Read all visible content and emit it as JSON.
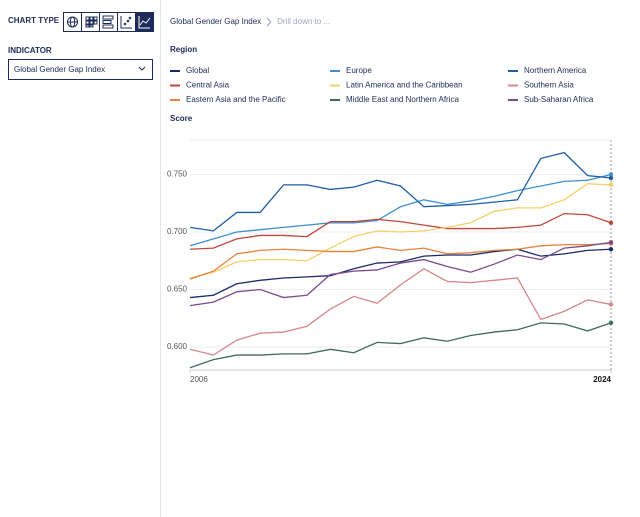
{
  "sidebar": {
    "chart_type_label": "CHART TYPE",
    "indicator_label": "INDICATOR",
    "indicator_value": "Global Gender Gap Index"
  },
  "header": {
    "title": "Global Gender Gap Index",
    "breadcrumb": "Drill down to ..."
  },
  "chart_data": {
    "type": "line",
    "legend_title": "Region",
    "ylabel": "Score",
    "x": [
      2006,
      2007,
      2008,
      2009,
      2010,
      2011,
      2012,
      2013,
      2014,
      2015,
      2016,
      2017,
      2018,
      2019,
      2020,
      2021,
      2022,
      2023,
      2024
    ],
    "xlim": [
      2006,
      2024
    ],
    "xticks": [
      2006,
      2024
    ],
    "ylim": [
      0.58,
      0.78
    ],
    "yticks": [
      {
        "value": 0.6,
        "label": "0.600"
      },
      {
        "value": 0.65,
        "label": "0.650"
      },
      {
        "value": 0.7,
        "label": "0.700"
      },
      {
        "value": 0.75,
        "label": "0.750"
      }
    ],
    "grid": true,
    "series": [
      {
        "name": "Global",
        "color": "#1b2a6b",
        "values": [
          0.643,
          0.645,
          0.655,
          0.658,
          0.66,
          0.661,
          0.662,
          0.668,
          0.673,
          0.674,
          0.679,
          0.68,
          0.68,
          0.683,
          0.685,
          0.679,
          0.681,
          0.684,
          0.685
        ]
      },
      {
        "name": "Europe",
        "color": "#3f8fcf",
        "values": [
          0.688,
          0.694,
          0.7,
          0.702,
          0.704,
          0.706,
          0.708,
          0.708,
          0.71,
          0.722,
          0.728,
          0.724,
          0.727,
          0.731,
          0.736,
          0.74,
          0.744,
          0.745,
          0.75
        ]
      },
      {
        "name": "Northern America",
        "color": "#1f5ea6",
        "values": [
          0.704,
          0.701,
          0.717,
          0.717,
          0.741,
          0.741,
          0.737,
          0.739,
          0.745,
          0.74,
          0.722,
          0.723,
          0.724,
          0.726,
          0.728,
          0.764,
          0.769,
          0.749,
          0.747
        ]
      },
      {
        "name": "Central Asia",
        "color": "#c0473a",
        "values": [
          0.685,
          0.686,
          0.694,
          0.697,
          0.697,
          0.696,
          0.709,
          0.709,
          0.711,
          0.709,
          0.706,
          0.703,
          0.703,
          0.703,
          0.704,
          0.706,
          0.716,
          0.715,
          0.708
        ]
      },
      {
        "name": "Latin America and the Caribbean",
        "color": "#f5d06a",
        "values": [
          0.66,
          0.665,
          0.674,
          0.676,
          0.676,
          0.675,
          0.686,
          0.696,
          0.701,
          0.7,
          0.701,
          0.704,
          0.708,
          0.718,
          0.721,
          0.721,
          0.728,
          0.742,
          0.741
        ]
      },
      {
        "name": "Southern Asia",
        "color": "#d48a88",
        "values": [
          0.598,
          0.593,
          0.606,
          0.612,
          0.613,
          0.618,
          0.633,
          0.644,
          0.638,
          0.654,
          0.668,
          0.657,
          0.656,
          0.658,
          0.66,
          0.624,
          0.631,
          0.641,
          0.637
        ]
      },
      {
        "name": "Eastern Asia and the Pacific",
        "color": "#e8823a",
        "values": [
          0.659,
          0.666,
          0.681,
          0.684,
          0.685,
          0.684,
          0.683,
          0.683,
          0.687,
          0.684,
          0.686,
          0.681,
          0.682,
          0.684,
          0.685,
          0.688,
          0.689,
          0.689,
          0.69
        ]
      },
      {
        "name": "Middle East and Northern Africa",
        "color": "#3e6b5a",
        "values": [
          0.582,
          0.589,
          0.593,
          0.593,
          0.594,
          0.594,
          0.598,
          0.595,
          0.604,
          0.603,
          0.608,
          0.605,
          0.61,
          0.613,
          0.615,
          0.621,
          0.62,
          0.614,
          0.621
        ]
      },
      {
        "name": "Sub-Saharan Africa",
        "color": "#7a4a8c",
        "values": [
          0.636,
          0.639,
          0.648,
          0.65,
          0.643,
          0.645,
          0.663,
          0.666,
          0.667,
          0.673,
          0.676,
          0.67,
          0.665,
          0.672,
          0.68,
          0.676,
          0.686,
          0.688,
          0.691
        ]
      }
    ]
  }
}
